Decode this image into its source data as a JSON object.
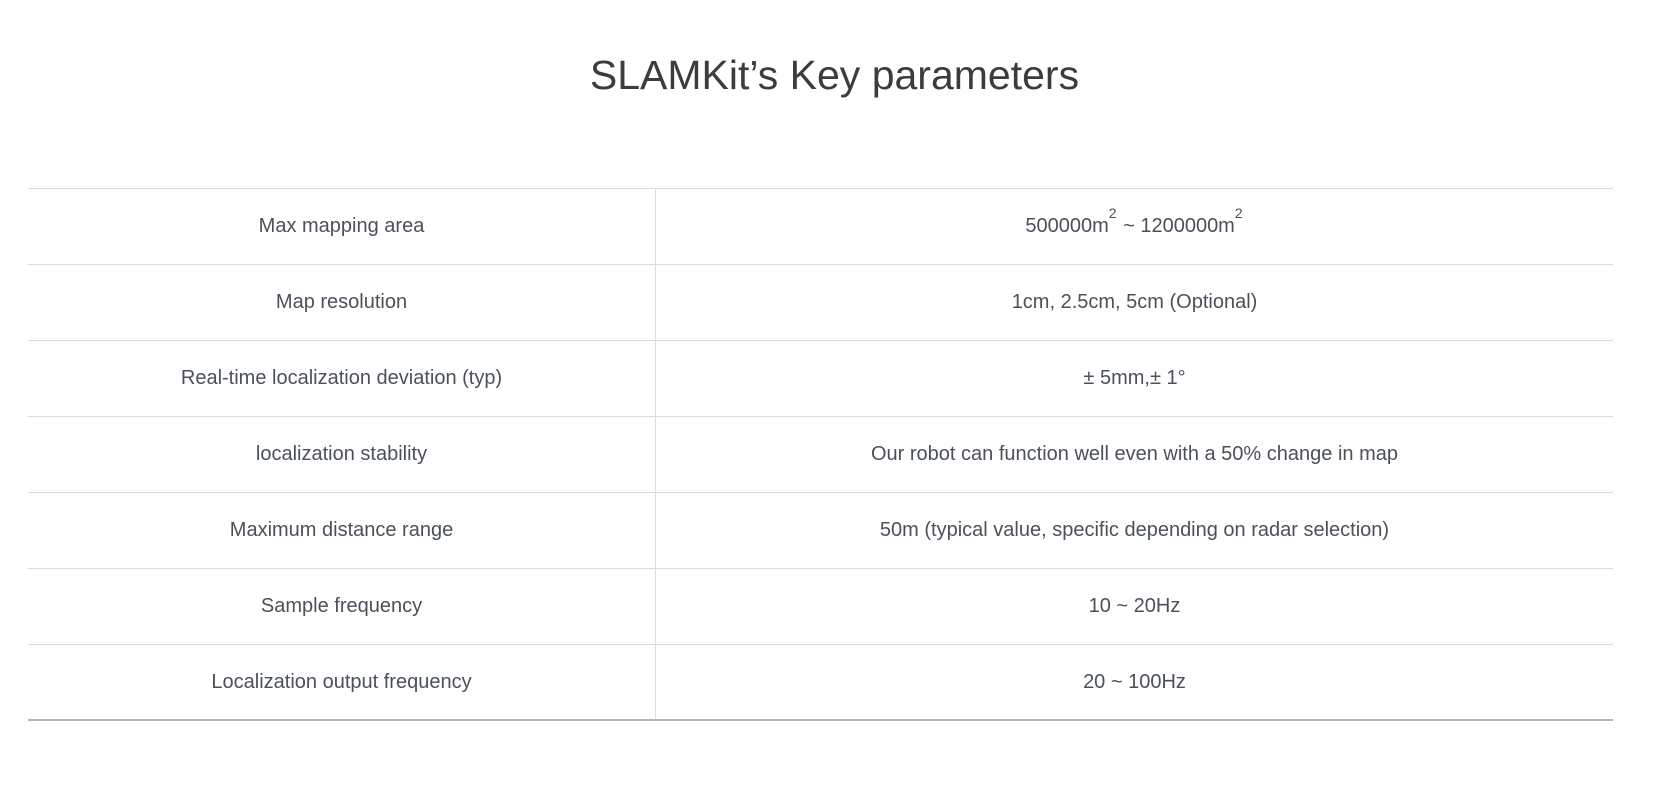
{
  "page": {
    "title": "SLAMKit’s Key parameters"
  },
  "colors": {
    "background": "#ffffff",
    "title_text": "#3c3c3c",
    "cell_text": "#4b515b",
    "row_border": "#dcdcdc",
    "bottom_border": "#b5b5b5"
  },
  "table": {
    "rows": [
      {
        "label": "Max mapping area",
        "value": "500000m² ~ 1200000m²",
        "value_parts": [
          "500000m",
          "2",
          " ~ 1200000m",
          "2"
        ]
      },
      {
        "label": "Map resolution",
        "value": "1cm、2.5cm、5cm（Optional）"
      },
      {
        "label": "Real-time localization deviation（typ）",
        "value": "± 5mm,± 1°"
      },
      {
        "label": "localization stability",
        "value": "Our robot can function well even with a 50% change in map"
      },
      {
        "label": "Maximum distance range",
        "value": "50m（typical value, specific depending on radar selection）"
      },
      {
        "label": "Sample frequency",
        "value": "10 ~ 20Hz"
      },
      {
        "label": "Localization output frequency",
        "value": "20 ~ 100Hz"
      }
    ]
  }
}
